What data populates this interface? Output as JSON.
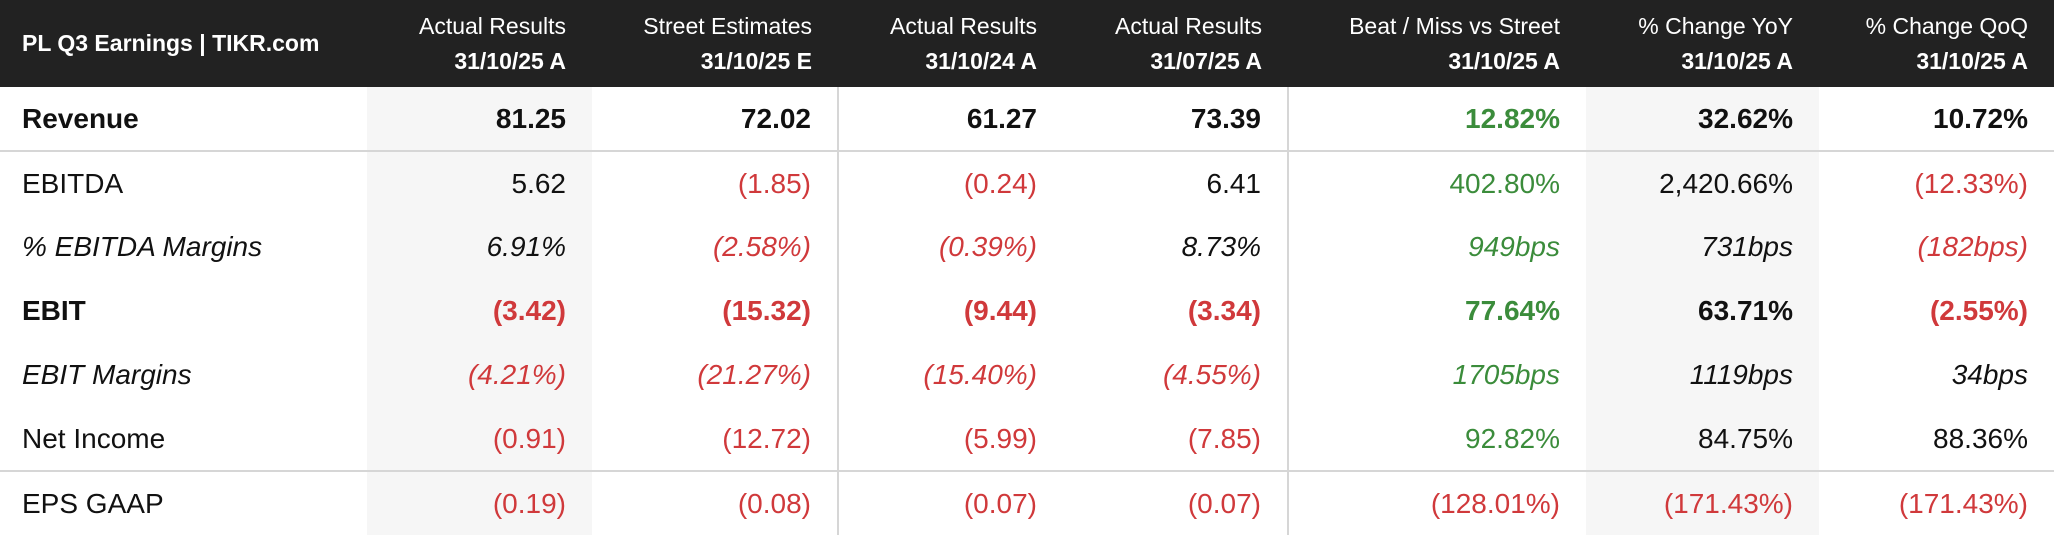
{
  "table": {
    "title": "PL Q3 Earnings | TIKR.com",
    "columns": [
      {
        "label": "Actual Results",
        "period": "31/10/25 A"
      },
      {
        "label": "Street Estimates",
        "period": "31/10/25 E"
      },
      {
        "label": "Actual Results",
        "period": "31/10/24 A"
      },
      {
        "label": "Actual Results",
        "period": "31/07/25 A"
      },
      {
        "label": "Beat / Miss vs Street",
        "period": "31/10/25 A"
      },
      {
        "label": "% Change YoY",
        "period": "31/10/25 A"
      },
      {
        "label": "% Change QoQ",
        "period": "31/10/25 A"
      }
    ],
    "rows": [
      {
        "label": "Revenue",
        "values": [
          "81.25",
          "72.02",
          "61.27",
          "73.39",
          "12.82%",
          "32.62%",
          "10.72%"
        ]
      },
      {
        "label": "EBITDA",
        "values": [
          "5.62",
          "(1.85)",
          "(0.24)",
          "6.41",
          "402.80%",
          "2,420.66%",
          "(12.33%)"
        ]
      },
      {
        "label": "% EBITDA Margins",
        "values": [
          "6.91%",
          "(2.58%)",
          "(0.39%)",
          "8.73%",
          "949bps",
          "731bps",
          "(182bps)"
        ]
      },
      {
        "label": "EBIT",
        "values": [
          "(3.42)",
          "(15.32)",
          "(9.44)",
          "(3.34)",
          "77.64%",
          "63.71%",
          "(2.55%)"
        ]
      },
      {
        "label": "EBIT Margins",
        "values": [
          "(4.21%)",
          "(21.27%)",
          "(15.40%)",
          "(4.55%)",
          "1705bps",
          "1119bps",
          "34bps"
        ]
      },
      {
        "label": "Net Income",
        "values": [
          "(0.91)",
          "(12.72)",
          "(5.99)",
          "(7.85)",
          "92.82%",
          "84.75%",
          "88.36%"
        ]
      },
      {
        "label": "EPS GAAP",
        "values": [
          "(0.19)",
          "(0.08)",
          "(0.07)",
          "(0.07)",
          "(128.01%)",
          "(171.43%)",
          "(171.43%)"
        ]
      }
    ]
  },
  "colors": {
    "header_background": "#222222",
    "negative": "#d0393b",
    "positive": "#3b8c3b",
    "shaded_column": "#f6f6f6"
  }
}
